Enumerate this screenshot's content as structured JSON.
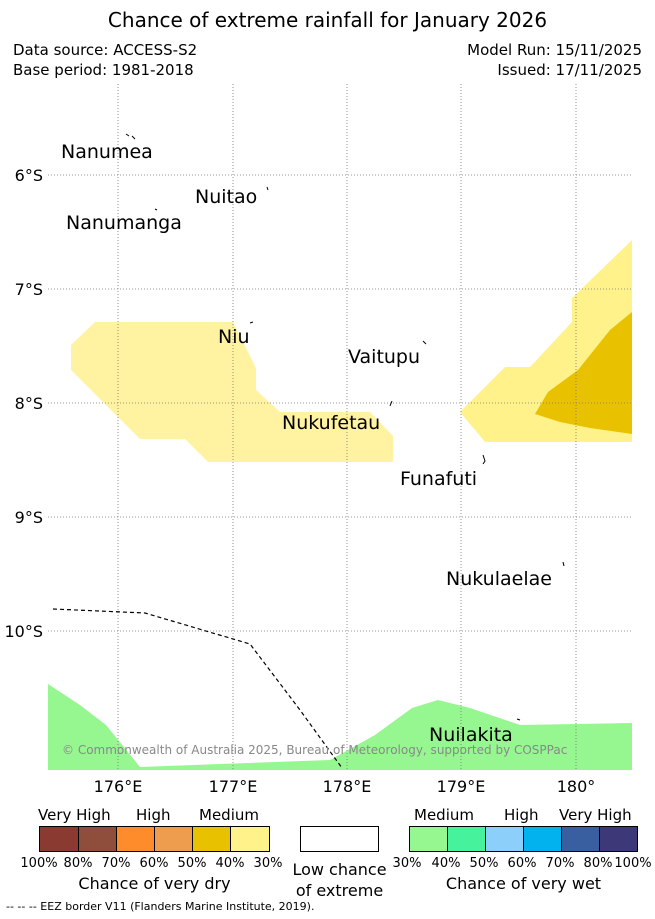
{
  "header": {
    "title": "Chance of extreme rainfall for January 2026",
    "data_source": "Data source: ACCESS-S2",
    "base_period": "Base period: 1981-2018",
    "model_run": "Model Run: 15/11/2025",
    "issued": "Issued: 17/11/2025"
  },
  "map": {
    "lat_labels": [
      "6°S",
      "7°S",
      "8°S",
      "9°S",
      "10°S"
    ],
    "lon_labels": [
      "176°E",
      "177°E",
      "178°E",
      "179°E",
      "180°"
    ],
    "places": [
      "Nanumea",
      "Nuitao",
      "Nanumanga",
      "Niu",
      "Vaitupu",
      "Nukufetau",
      "Funafuti",
      "Nukulaelae",
      "Nuilakita"
    ],
    "copyright": "© Commonwealth of Australia 2025, Bureau of Meteorology, supported by COSPPac"
  },
  "legend": {
    "dry": {
      "headings": [
        "Very High",
        "High",
        "Medium"
      ],
      "percentages": [
        "100%",
        "80%",
        "70%",
        "60%",
        "50%",
        "40%",
        "30%"
      ],
      "colors": [
        "#8b3a32",
        "#8f4d3c",
        "#ff8c2a",
        "#ee9c4d",
        "#e8c200",
        "#fff28a"
      ],
      "caption": "Chance of very dry"
    },
    "low": {
      "caption_line1": "Low chance",
      "caption_line2": "of extreme"
    },
    "wet": {
      "headings": [
        "Medium",
        "High",
        "Very High"
      ],
      "percentages": [
        "30%",
        "40%",
        "50%",
        "60%",
        "70%",
        "80%",
        "100%"
      ],
      "colors": [
        "#96f791",
        "#46f29c",
        "#8ccffa",
        "#02b2ef",
        "#3a5fa1",
        "#3d3978"
      ],
      "caption": "Chance of very wet"
    }
  },
  "footer": {
    "eez_label": "--  --  -- EEZ border V11 (Flanders Marine Institute, 2019)."
  }
}
